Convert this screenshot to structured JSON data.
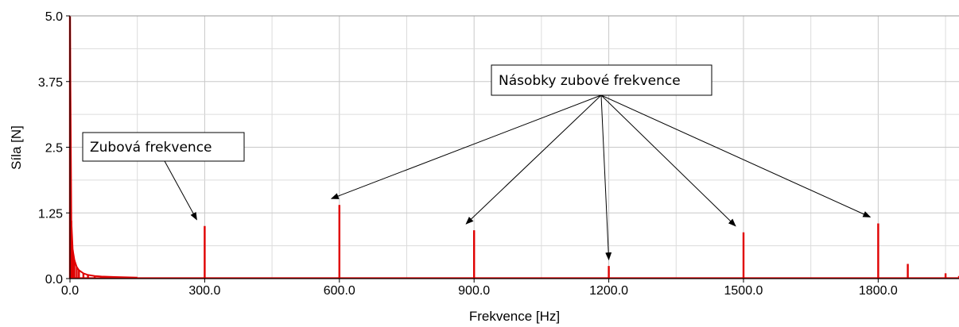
{
  "chart_data": {
    "type": "line",
    "xlabel": "Frekvence [Hz]",
    "ylabel": "Síla [N]",
    "xlim": [
      0,
      1980
    ],
    "ylim": [
      0,
      5.0
    ],
    "grid": true,
    "x_ticks": [
      0,
      300,
      600,
      900,
      1200,
      1500,
      1800
    ],
    "x_tick_labels": [
      "0.0",
      "300.0",
      "600.0",
      "900.0",
      "1200.0",
      "1500.0",
      "1800.0"
    ],
    "y_ticks": [
      0,
      1.25,
      2.5,
      3.75,
      5.0
    ],
    "y_tick_labels": [
      "0.0",
      "1.25",
      "2.5",
      "3.75",
      "5.0"
    ],
    "series_color": "#e00000",
    "series": [
      {
        "x": [
          0,
          3,
          6,
          10,
          15,
          20,
          30,
          40,
          55,
          70,
          100,
          150,
          300,
          600,
          900,
          1200,
          1500,
          1800,
          1866,
          1950,
          1980
        ],
        "values": [
          5.0,
          1.1,
          0.55,
          0.35,
          0.22,
          0.16,
          0.1,
          0.07,
          0.05,
          0.04,
          0.03,
          0.02,
          1.0,
          1.4,
          0.92,
          0.24,
          0.88,
          1.05,
          0.28,
          0.1,
          0.05
        ]
      }
    ],
    "annotations": [
      {
        "text": "Zubová frekvence",
        "targets": [
          300
        ]
      },
      {
        "text": "Násobky zubové frekvence",
        "targets": [
          600,
          900,
          1200,
          1500,
          1800
        ]
      }
    ]
  }
}
